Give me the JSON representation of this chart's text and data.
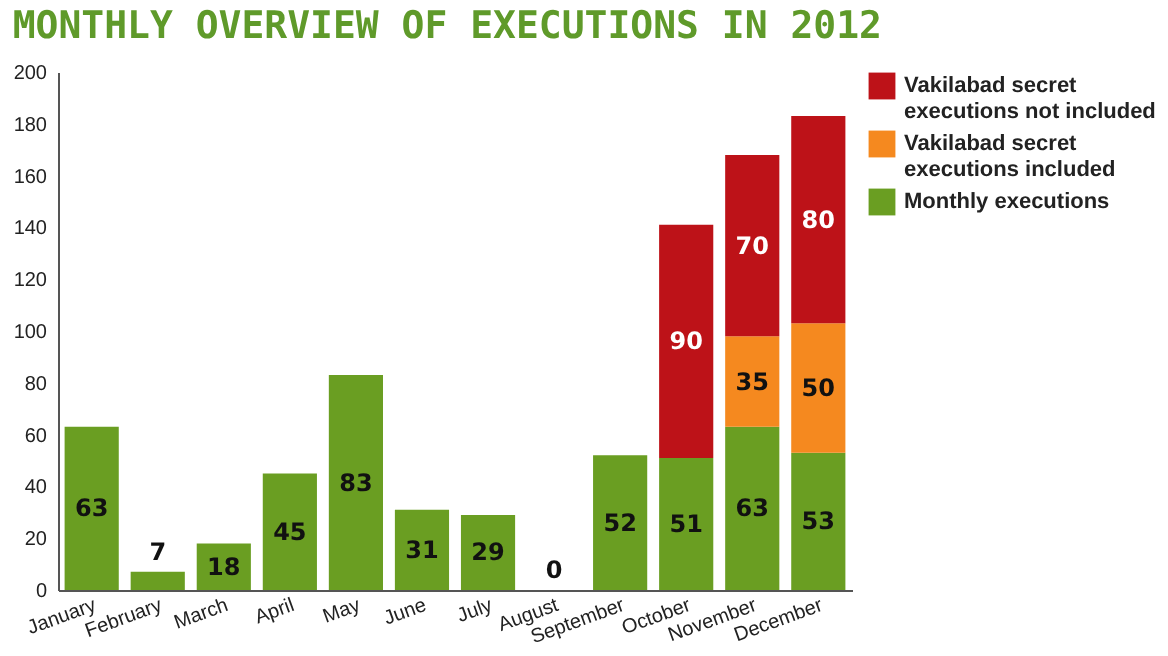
{
  "chart_data": {
    "type": "bar",
    "title": "MONTHLY OVERVIEW OF EXECUTIONS IN 2012",
    "categories": [
      "January",
      "February",
      "March",
      "April",
      "May",
      "June",
      "July",
      "August",
      "September",
      "October",
      "November",
      "December"
    ],
    "series": [
      {
        "name": "Monthly executions",
        "color": "#6a9e22",
        "values": [
          63,
          7,
          18,
          45,
          83,
          31,
          29,
          0,
          52,
          51,
          63,
          53
        ]
      },
      {
        "name": "Vakilabad secret executions included",
        "color": "#f5891f",
        "values": [
          null,
          null,
          null,
          null,
          null,
          null,
          null,
          null,
          null,
          null,
          35,
          50
        ]
      },
      {
        "name": "Vakilabad secret executions not included",
        "color": "#bd1218",
        "values": [
          null,
          null,
          null,
          null,
          null,
          null,
          null,
          null,
          null,
          90,
          70,
          80
        ]
      }
    ],
    "stacked": true,
    "data_labels": true,
    "legend": "right",
    "ylim": [
      0,
      200
    ],
    "yticks": [
      0,
      20,
      40,
      60,
      80,
      100,
      120,
      140,
      160,
      180,
      200
    ]
  }
}
